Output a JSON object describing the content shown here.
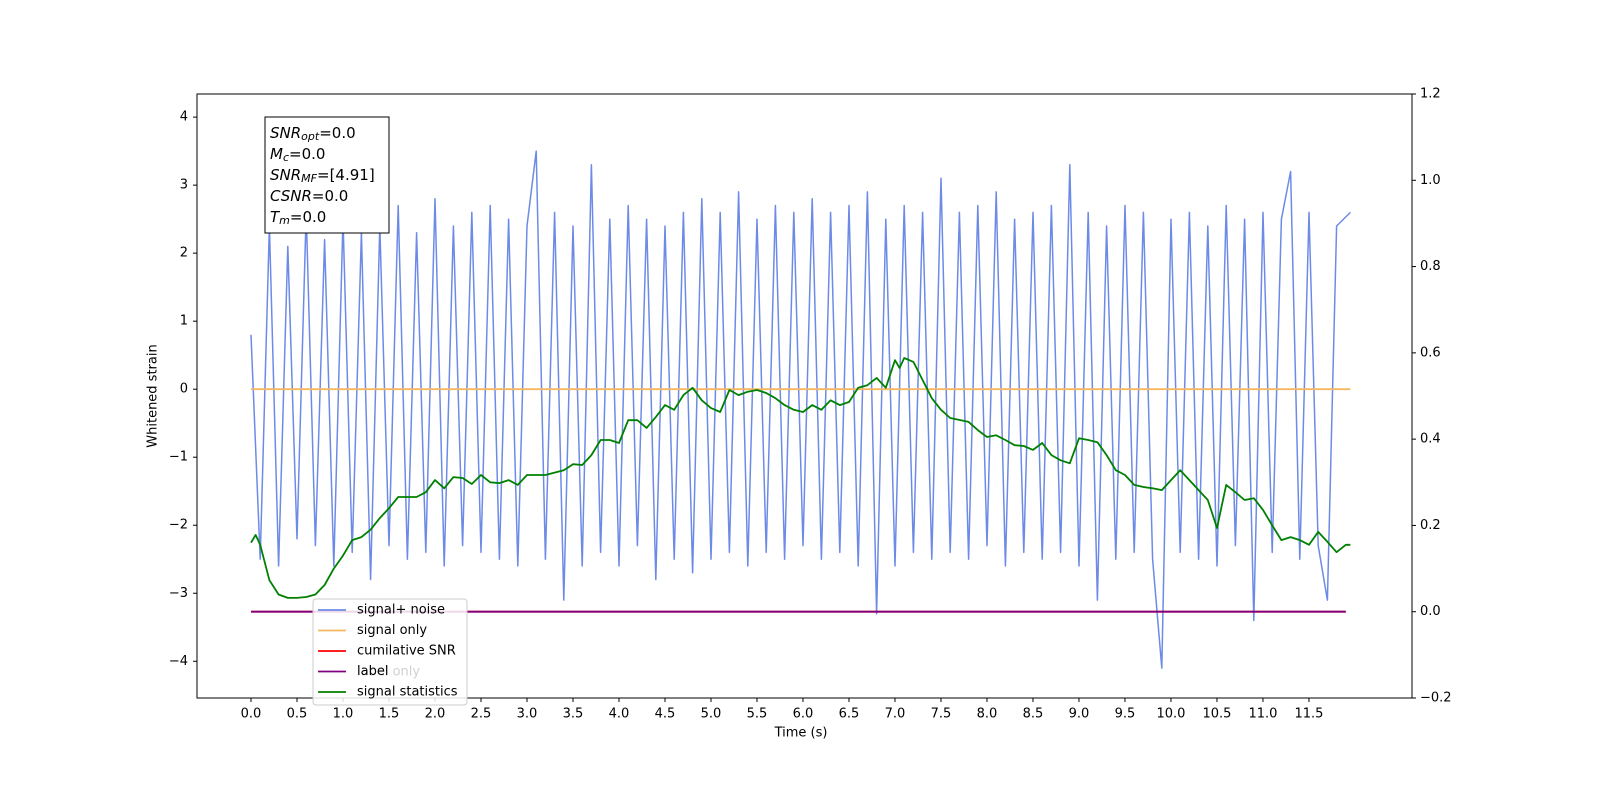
{
  "chart_data": {
    "type": "line",
    "xlabel": "Time (s)",
    "ylabel": "Whitened strain",
    "xlim": [
      -0.587,
      12.62
    ],
    "ylim": [
      -4.54,
      4.34
    ],
    "y2lim": [
      -0.2,
      1.2
    ],
    "grid": false,
    "legend": "lower left",
    "xticks": [
      {
        "value": 0,
        "label": "0.0"
      },
      0.5,
      {
        "value": 1,
        "label": "1.0"
      },
      1.5,
      {
        "value": 2,
        "label": "2.0"
      },
      2.5,
      {
        "value": 3,
        "label": "3.0"
      },
      3.5,
      {
        "value": 4,
        "label": "4.0"
      },
      4.5,
      {
        "value": 5,
        "label": "5.0"
      },
      5.5,
      {
        "value": 6,
        "label": "6.0"
      },
      6.5,
      {
        "value": 7,
        "label": "7.0"
      },
      7.5,
      {
        "value": 8,
        "label": "8.0"
      },
      8.5,
      {
        "value": 9,
        "label": "9.0"
      },
      9.5,
      {
        "value": 10,
        "label": "10.0"
      },
      10.5,
      {
        "value": 11,
        "label": "11.0"
      },
      11.5
    ],
    "yticks": [
      {
        "value": -4,
        "label": "−4"
      },
      {
        "value": -3,
        "label": "−3"
      },
      {
        "value": -2,
        "label": "−2"
      },
      {
        "value": -1,
        "label": "−1"
      },
      0,
      1,
      2,
      3,
      4
    ],
    "y2ticks": [
      {
        "value": -0.2,
        "label": "−0.2"
      },
      {
        "value": 0,
        "label": "0.0"
      },
      0.2,
      0.4,
      0.6,
      0.8,
      {
        "value": 1,
        "label": "1.0"
      },
      1.2
    ],
    "series": [
      {
        "name": "signal+ noise",
        "color": "#6d8be6",
        "x": [
          0.0,
          0.1,
          0.2,
          0.3,
          0.4,
          0.5,
          0.6,
          0.7,
          0.8,
          0.9,
          1.0,
          1.1,
          1.2,
          1.3,
          1.4,
          1.5,
          1.6,
          1.7,
          1.8,
          1.9,
          2.0,
          2.1,
          2.2,
          2.3,
          2.4,
          2.5,
          2.6,
          2.7,
          2.8,
          2.9,
          3.0,
          3.1,
          3.2,
          3.3,
          3.4,
          3.5,
          3.6,
          3.7,
          3.8,
          3.9,
          4.0,
          4.1,
          4.2,
          4.3,
          4.4,
          4.5,
          4.6,
          4.7,
          4.8,
          4.9,
          5.0,
          5.1,
          5.2,
          5.3,
          5.4,
          5.5,
          5.6,
          5.7,
          5.8,
          5.9,
          6.0,
          6.1,
          6.2,
          6.3,
          6.4,
          6.5,
          6.6,
          6.7,
          6.8,
          6.9,
          7.0,
          7.1,
          7.2,
          7.3,
          7.4,
          7.5,
          7.6,
          7.7,
          7.8,
          7.9,
          8.0,
          8.1,
          8.2,
          8.3,
          8.4,
          8.5,
          8.6,
          8.7,
          8.8,
          8.9,
          9.0,
          9.1,
          9.2,
          9.3,
          9.4,
          9.5,
          9.6,
          9.7,
          9.8,
          9.9,
          10.0,
          10.1,
          10.2,
          10.3,
          10.4,
          10.5,
          10.6,
          10.7,
          10.8,
          10.9,
          11.0,
          11.1,
          11.2,
          11.3,
          11.4,
          11.5,
          11.6,
          11.7,
          11.8,
          11.95
        ],
        "values": [
          0.8,
          -2.5,
          2.4,
          -2.6,
          2.1,
          -2.2,
          2.6,
          -2.3,
          2.2,
          -2.6,
          2.5,
          -2.4,
          2.3,
          -2.8,
          2.4,
          -2.3,
          2.7,
          -2.5,
          2.3,
          -2.4,
          2.8,
          -2.6,
          2.4,
          -2.3,
          2.6,
          -2.4,
          2.7,
          -2.5,
          2.5,
          -2.6,
          2.4,
          3.5,
          -2.5,
          2.6,
          -3.1,
          2.4,
          -2.6,
          3.3,
          -2.4,
          2.5,
          -2.6,
          2.7,
          -2.3,
          2.5,
          -2.8,
          2.4,
          -2.5,
          2.6,
          -2.7,
          2.8,
          -2.5,
          2.6,
          -2.4,
          2.9,
          -2.6,
          2.5,
          -2.4,
          2.7,
          -2.5,
          2.6,
          -2.3,
          2.8,
          -2.5,
          2.6,
          -2.4,
          2.7,
          -2.6,
          2.9,
          -3.3,
          2.5,
          -2.6,
          2.7,
          -2.4,
          2.6,
          -2.5,
          3.1,
          -2.4,
          2.6,
          -2.5,
          2.7,
          -2.3,
          2.9,
          -2.6,
          2.5,
          -2.4,
          2.6,
          -2.5,
          2.7,
          -2.4,
          3.3,
          -2.6,
          2.6,
          -3.1,
          2.4,
          -2.5,
          2.7,
          -2.4,
          2.6,
          -2.5,
          -4.1,
          2.5,
          -2.4,
          2.6,
          -2.5,
          2.4,
          -2.6,
          2.7,
          -2.3,
          2.5,
          -3.4,
          2.6,
          -2.4,
          2.5,
          3.2,
          -2.5,
          2.6,
          -2.3,
          -3.1,
          2.4,
          2.6
        ]
      },
      {
        "name": "signal only",
        "color": "#f5b860",
        "x": [
          0.0,
          11.95
        ],
        "values": [
          0,
          0
        ]
      },
      {
        "name": "cumilative SNR",
        "color": "#ff0000",
        "axis": "y2",
        "x": [
          0.0,
          11.9
        ],
        "values": [
          0,
          0
        ]
      },
      {
        "name": "label",
        "color": "#800080",
        "axis": "y2",
        "x": [
          0.0,
          11.9
        ],
        "values": [
          0,
          0
        ]
      },
      {
        "name": "signal statistics",
        "color": "#008000",
        "axis": "y2",
        "x": [
          0.0,
          0.05,
          0.1,
          0.2,
          0.3,
          0.4,
          0.5,
          0.6,
          0.7,
          0.8,
          0.9,
          1.0,
          1.1,
          1.2,
          1.3,
          1.4,
          1.5,
          1.6,
          1.7,
          1.8,
          1.9,
          2.0,
          2.1,
          2.2,
          2.3,
          2.4,
          2.5,
          2.6,
          2.7,
          2.8,
          2.9,
          3.0,
          3.2,
          3.4,
          3.5,
          3.6,
          3.7,
          3.8,
          3.9,
          4.0,
          4.1,
          4.2,
          4.3,
          4.4,
          4.5,
          4.6,
          4.7,
          4.8,
          4.9,
          5.0,
          5.1,
          5.2,
          5.3,
          5.4,
          5.5,
          5.6,
          5.7,
          5.8,
          5.9,
          6.0,
          6.1,
          6.2,
          6.3,
          6.4,
          6.5,
          6.6,
          6.7,
          6.8,
          6.9,
          7.0,
          7.05,
          7.1,
          7.2,
          7.3,
          7.4,
          7.5,
          7.6,
          7.8,
          7.9,
          8.0,
          8.1,
          8.2,
          8.3,
          8.4,
          8.5,
          8.6,
          8.7,
          8.8,
          8.9,
          9.0,
          9.1,
          9.2,
          9.3,
          9.4,
          9.5,
          9.6,
          9.7,
          9.8,
          9.9,
          10.0,
          10.1,
          10.2,
          10.3,
          10.4,
          10.5,
          10.6,
          10.7,
          10.8,
          10.9,
          11.0,
          11.1,
          11.2,
          11.3,
          11.4,
          11.5,
          11.6,
          11.7,
          11.8,
          11.9,
          11.95
        ],
        "values": [
          0.16,
          0.178,
          0.155,
          0.073,
          0.04,
          0.032,
          0.032,
          0.034,
          0.04,
          0.062,
          0.1,
          0.13,
          0.166,
          0.173,
          0.19,
          0.217,
          0.24,
          0.266,
          0.266,
          0.266,
          0.277,
          0.305,
          0.286,
          0.312,
          0.31,
          0.296,
          0.317,
          0.3,
          0.298,
          0.305,
          0.294,
          0.317,
          0.317,
          0.328,
          0.342,
          0.34,
          0.363,
          0.398,
          0.398,
          0.391,
          0.444,
          0.444,
          0.426,
          0.451,
          0.479,
          0.468,
          0.502,
          0.519,
          0.49,
          0.472,
          0.463,
          0.514,
          0.502,
          0.51,
          0.514,
          0.507,
          0.495,
          0.479,
          0.468,
          0.463,
          0.479,
          0.468,
          0.49,
          0.479,
          0.486,
          0.519,
          0.525,
          0.542,
          0.519,
          0.583,
          0.565,
          0.588,
          0.579,
          0.537,
          0.495,
          0.468,
          0.449,
          0.44,
          0.421,
          0.405,
          0.409,
          0.398,
          0.386,
          0.384,
          0.375,
          0.391,
          0.363,
          0.351,
          0.344,
          0.402,
          0.398,
          0.393,
          0.363,
          0.328,
          0.317,
          0.294,
          0.289,
          0.286,
          0.282,
          0.305,
          0.328,
          0.305,
          0.282,
          0.259,
          0.194,
          0.294,
          0.277,
          0.259,
          0.263,
          0.236,
          0.2,
          0.166,
          0.173,
          0.166,
          0.155,
          0.185,
          0.162,
          0.138,
          0.155,
          0.155
        ]
      }
    ],
    "legend_ghost_text": "label only",
    "info_box": [
      {
        "base": "SNR",
        "sub": "opt",
        "rest": "=0.0"
      },
      {
        "base": "M",
        "sub": "c",
        "rest": "=0.0"
      },
      {
        "base": "SNR",
        "sub": "MF",
        "rest": "=[4.91]"
      },
      {
        "base": "CSNR",
        "rest": "=0.0"
      },
      {
        "base": "T",
        "sub": "m",
        "rest": "=0.0"
      }
    ]
  }
}
